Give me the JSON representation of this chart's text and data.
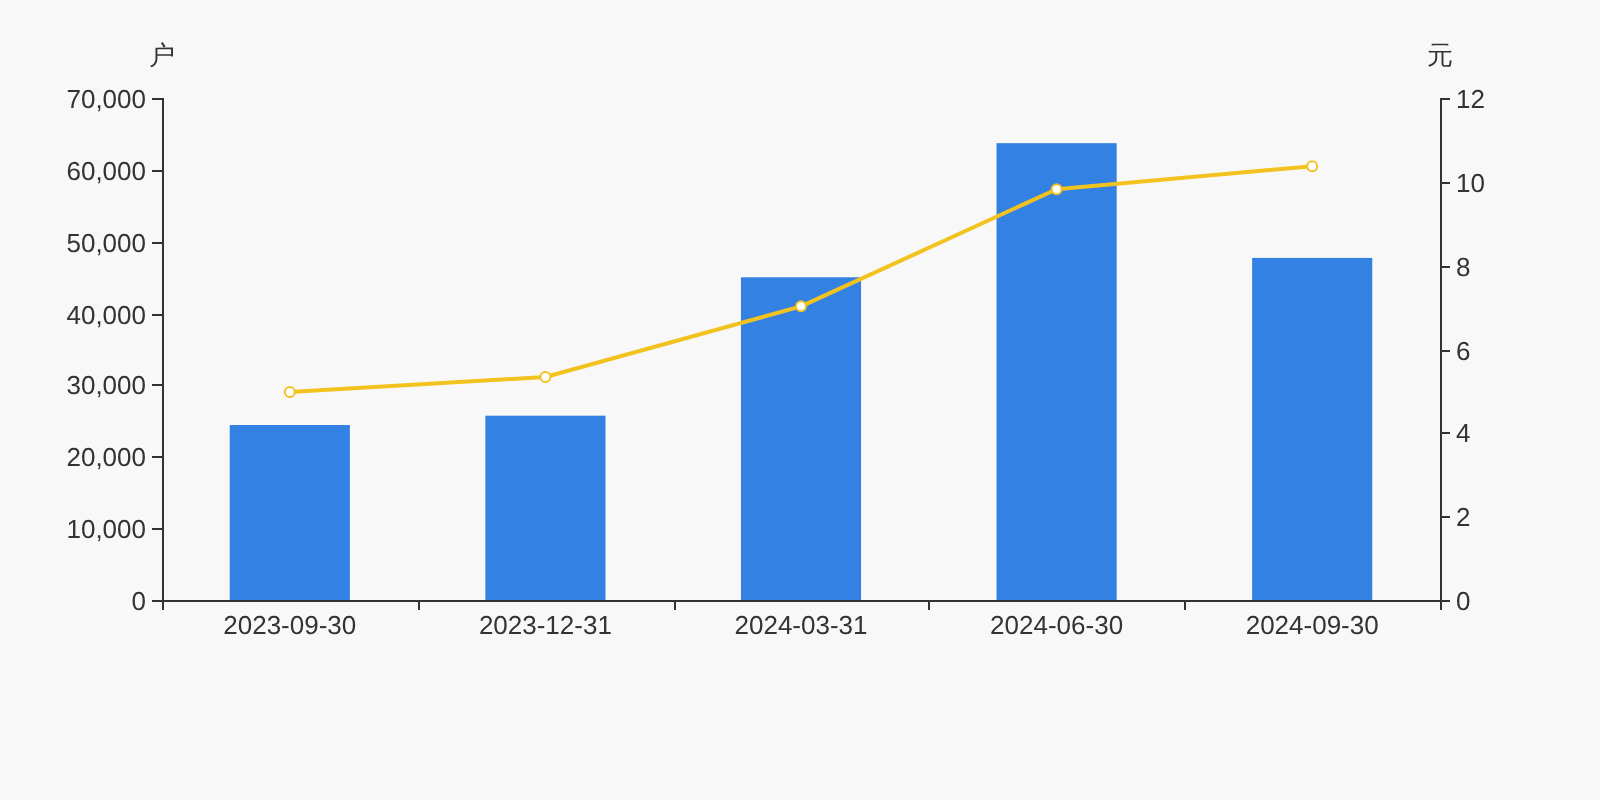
{
  "chart_data": {
    "type": "bar",
    "categories": [
      "2023-09-30",
      "2023-12-31",
      "2024-03-31",
      "2024-06-30",
      "2024-09-30"
    ],
    "ylabel": "户",
    "y2label": "元",
    "series": [
      {
        "color": "#3381e3",
        "values": [
          24400,
          25700,
          45000,
          63700,
          47700
        ]
      },
      {
        "type": "line",
        "axis": "y2",
        "color": "#f2c31e",
        "marker": "circle",
        "values": [
          4.97,
          5.33,
          7.02,
          9.82,
          10.37
        ]
      }
    ],
    "ylim": [
      0,
      70000
    ],
    "yticks": [
      0,
      {
        "value": 10000,
        "label": "10,000"
      },
      {
        "value": 20000,
        "label": "20,000"
      },
      {
        "value": 30000,
        "label": "30,000"
      },
      {
        "value": 40000,
        "label": "40,000"
      },
      {
        "value": 50000,
        "label": "50,000"
      },
      {
        "value": 60000,
        "label": "60,000"
      },
      {
        "value": 70000,
        "label": "70,000"
      }
    ],
    "y2lim": [
      0,
      12
    ],
    "y2ticks": [
      0,
      2,
      4,
      6,
      8,
      10,
      12
    ]
  }
}
